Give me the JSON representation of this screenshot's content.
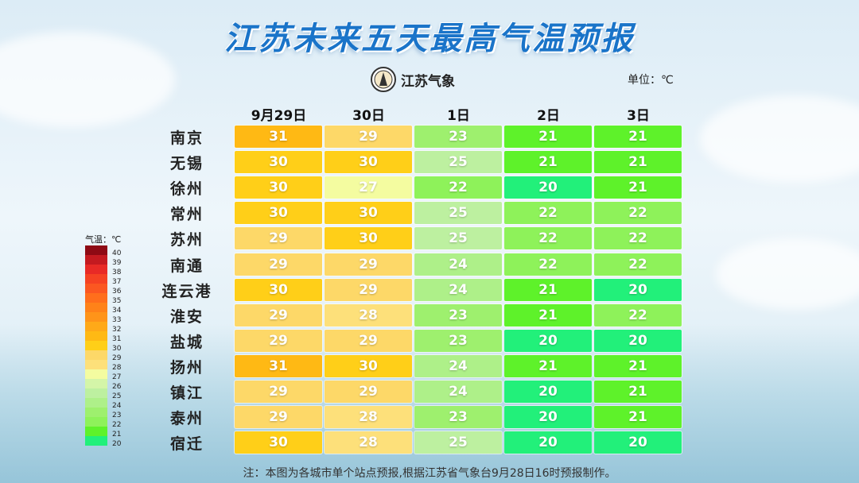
{
  "title": "江苏未来五天最高气温预报",
  "logo_text": "江苏气象",
  "unit": "单位：℃",
  "columns": [
    "9月29日",
    "30日",
    "1日",
    "2日",
    "3日"
  ],
  "cities": [
    "南京",
    "无锡",
    "徐州",
    "常州",
    "苏州",
    "南通",
    "连云港",
    "淮安",
    "盐城",
    "扬州",
    "镇江",
    "泰州",
    "宿迁"
  ],
  "temps": [
    [
      31,
      29,
      23,
      21,
      21
    ],
    [
      30,
      30,
      25,
      21,
      21
    ],
    [
      30,
      27,
      22,
      20,
      21
    ],
    [
      30,
      30,
      25,
      22,
      22
    ],
    [
      29,
      30,
      25,
      22,
      22
    ],
    [
      29,
      29,
      24,
      22,
      22
    ],
    [
      30,
      29,
      24,
      21,
      20
    ],
    [
      29,
      28,
      23,
      21,
      22
    ],
    [
      29,
      29,
      23,
      20,
      20
    ],
    [
      31,
      30,
      24,
      21,
      21
    ],
    [
      29,
      29,
      24,
      20,
      21
    ],
    [
      29,
      28,
      23,
      20,
      21
    ],
    [
      30,
      28,
      25,
      20,
      20
    ]
  ],
  "legend": {
    "title": "气温：℃",
    "values": [
      40,
      39,
      38,
      37,
      36,
      35,
      34,
      33,
      32,
      31,
      30,
      29,
      28,
      27,
      26,
      25,
      24,
      23,
      22,
      21,
      20
    ]
  },
  "colors": {
    "20": "#22f07a",
    "21": "#5ef22a",
    "22": "#8ef25a",
    "23": "#9ef06e",
    "24": "#aef089",
    "25": "#bdf0a0",
    "26": "#d4f5a8",
    "27": "#f4fca0",
    "28": "#fde07a",
    "29": "#fdd868",
    "30": "#ffcf18",
    "31": "#ffb914",
    "32": "#ffa918",
    "33": "#ff9419",
    "34": "#ff8219",
    "35": "#ff6e1c",
    "36": "#fb5721",
    "37": "#f54223",
    "38": "#e82a26",
    "39": "#c41a20",
    "40": "#8e0a14"
  },
  "note": "注：本图为各城市单个站点预报,根据江苏省气象台9月28日16时预报制作。"
}
